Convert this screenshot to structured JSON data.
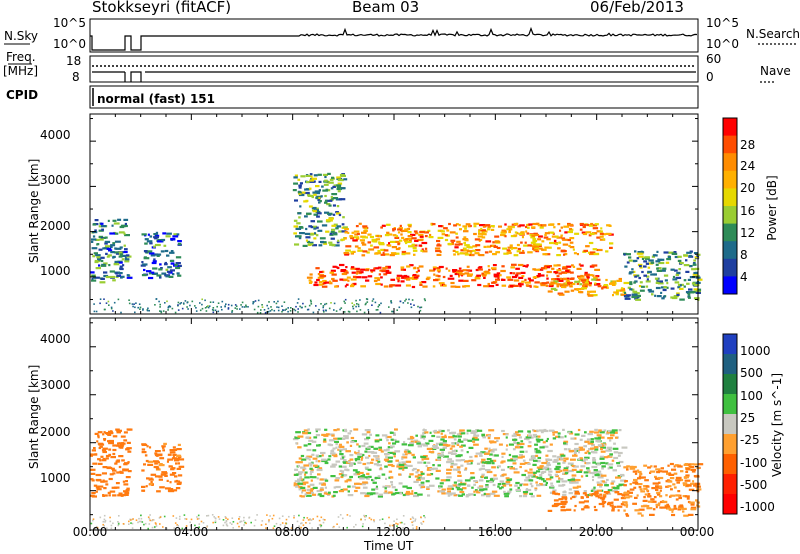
{
  "header": {
    "station": "Stokkseyri (fitACF)",
    "beam": "Beam 03",
    "date": "06/Feb/2013"
  },
  "top_panels": {
    "nsky_label": "N.Sky",
    "nsky_ticks": [
      "10^5",
      "10^0"
    ],
    "nsky_right_ticks": [
      "10^5",
      "10^0"
    ],
    "nsearch_label": "N.Search",
    "freq_label_1": "Freq.",
    "freq_label_2": "[MHz]",
    "freq_ticks": [
      "18",
      "8"
    ],
    "nave_ticks": [
      "60",
      "0"
    ],
    "nave_label": "Nave",
    "cpid_label": "CPID",
    "cpid_value": "normal (fast) 151"
  },
  "power_panel": {
    "ylabel": "Slant Range [km]",
    "yticks": [
      "4000",
      "3000",
      "2000",
      "1000"
    ],
    "colorbar_label": "Power [dB]",
    "colorbar_ticks": [
      "28",
      "24",
      "20",
      "16",
      "12",
      "8",
      "4"
    ],
    "colorbar_colors": [
      "#ff0000",
      "#ff4d00",
      "#ff8c00",
      "#ffb000",
      "#e6d800",
      "#9acd32",
      "#2e8b57",
      "#1e6b8a",
      "#1f3fa0",
      "#0000ff"
    ]
  },
  "velocity_panel": {
    "ylabel": "Slant Range [km]",
    "yticks": [
      "4000",
      "3000",
      "2000",
      "1000"
    ],
    "colorbar_label": "Velocity [m s^-1]",
    "colorbar_ticks": [
      "1000",
      "500",
      "100",
      "25",
      "-25",
      "-100",
      "-500",
      "-1000"
    ],
    "colorbar_colors": [
      "#2040c0",
      "#206080",
      "#208040",
      "#40c040",
      "#c8c8c0",
      "#ffa030",
      "#ff6000",
      "#ff2000",
      "#ff0000"
    ]
  },
  "xaxis": {
    "label": "Time UT",
    "ticks": [
      "00:00",
      "04:00",
      "08:00",
      "12:00",
      "16:00",
      "20:00",
      "00:00"
    ]
  },
  "chart_data": [
    {
      "type": "heatmap",
      "title": "Power [dB]",
      "xlabel": "Time UT",
      "ylabel": "Slant Range [km]",
      "xlim_hours": [
        0,
        24
      ],
      "ylim": [
        180,
        4600
      ],
      "clim": [
        0,
        30
      ],
      "features": [
        {
          "t": [
            0.0,
            1.5
          ],
          "r": [
            900,
            2300
          ],
          "power": 8
        },
        {
          "t": [
            2.0,
            3.5
          ],
          "r": [
            1000,
            2000
          ],
          "power": 6
        },
        {
          "t": [
            8.0,
            10.0
          ],
          "r": [
            1700,
            3300
          ],
          "power": 10
        },
        {
          "t": [
            8.5,
            20.0
          ],
          "r": [
            800,
            1300
          ],
          "power": 26
        },
        {
          "t": [
            10.0,
            20.5
          ],
          "r": [
            1500,
            2200
          ],
          "power": 22
        },
        {
          "t": [
            18.0,
            21.0
          ],
          "r": [
            600,
            1000
          ],
          "power": 20
        },
        {
          "t": [
            21.0,
            24.0
          ],
          "r": [
            500,
            1600
          ],
          "power": 10
        }
      ]
    },
    {
      "type": "heatmap",
      "title": "Velocity [m s^-1]",
      "xlabel": "Time UT",
      "ylabel": "Slant Range [km]",
      "xlim_hours": [
        0,
        24
      ],
      "ylim": [
        180,
        4600
      ],
      "clim": [
        -1000,
        1000
      ],
      "features": [
        {
          "t": [
            0.0,
            1.5
          ],
          "r": [
            900,
            2300
          ],
          "velocity": -200
        },
        {
          "t": [
            2.0,
            3.5
          ],
          "r": [
            1000,
            2000
          ],
          "velocity": -150
        },
        {
          "t": [
            8.0,
            21.0
          ],
          "r": [
            900,
            2300
          ],
          "velocity": 0
        },
        {
          "t": [
            18.0,
            21.0
          ],
          "r": [
            600,
            1000
          ],
          "velocity": -300
        },
        {
          "t": [
            21.0,
            24.0
          ],
          "r": [
            500,
            1600
          ],
          "velocity": -100
        }
      ]
    }
  ]
}
